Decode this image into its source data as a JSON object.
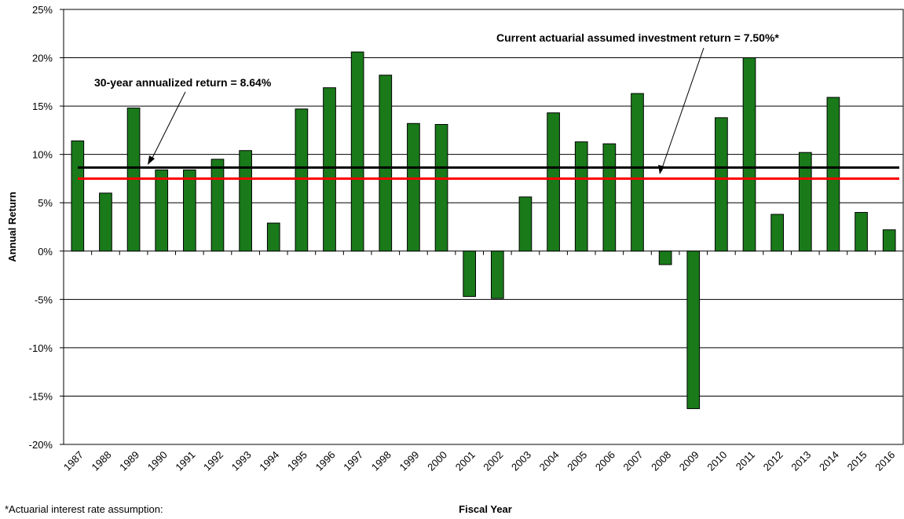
{
  "chart_data": {
    "type": "bar",
    "x_label": "Fiscal Year",
    "y_label": "Annual Return",
    "footnote": "*Actuarial interest rate assumption:",
    "categories": [
      "1987",
      "1988",
      "1989",
      "1990",
      "1991",
      "1992",
      "1993",
      "1994",
      "1995",
      "1996",
      "1997",
      "1998",
      "1999",
      "2000",
      "2001",
      "2002",
      "2003",
      "2004",
      "2005",
      "2006",
      "2007",
      "2008",
      "2009",
      "2010",
      "2011",
      "2012",
      "2013",
      "2014",
      "2015",
      "2016"
    ],
    "values": [
      11.4,
      6.0,
      14.8,
      8.4,
      8.4,
      9.5,
      10.4,
      2.9,
      14.7,
      16.9,
      20.6,
      18.2,
      13.2,
      13.1,
      -4.7,
      -4.9,
      5.6,
      14.3,
      11.3,
      11.1,
      16.3,
      -1.4,
      -16.3,
      13.8,
      20.0,
      3.8,
      10.2,
      15.9,
      4.0,
      2.2
    ],
    "color": "#1a7a1a",
    "ylim": [
      -20,
      25
    ],
    "yticks": [
      {
        "value": -20,
        "label": "-20%"
      },
      {
        "value": -15,
        "label": "-15%"
      },
      {
        "value": -10,
        "label": "-10%"
      },
      {
        "value": -5,
        "label": "-5%"
      },
      {
        "value": 0,
        "label": "0%"
      },
      {
        "value": 5,
        "label": "5%"
      },
      {
        "value": 10,
        "label": "10%"
      },
      {
        "value": 15,
        "label": "15%"
      },
      {
        "value": 20,
        "label": "20%"
      },
      {
        "value": 25,
        "label": "25%"
      }
    ],
    "grid": true,
    "reference_lines": [
      {
        "value": 8.64,
        "color": "#000000",
        "label": "30-year annualized return = 8.64%"
      },
      {
        "value": 7.5,
        "color": "#ff0000",
        "label": "Current actuarial assumed investment return  = 7.50%*"
      }
    ]
  }
}
